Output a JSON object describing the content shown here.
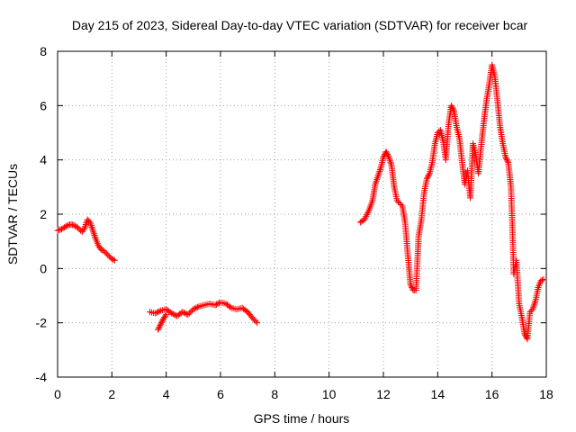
{
  "chart_data": {
    "type": "scatter",
    "title": "Day 215 of 2023, Sidereal Day-to-day VTEC variation (SDTVAR) for receiver bcar",
    "xlabel": "GPS time / hours",
    "ylabel": "SDTVAR / TECUs",
    "xlim": [
      0,
      18
    ],
    "ylim": [
      -4,
      8
    ],
    "xticks": [
      0,
      2,
      4,
      6,
      8,
      10,
      12,
      14,
      16,
      18
    ],
    "yticks": [
      -4,
      -2,
      0,
      2,
      4,
      6,
      8
    ],
    "xtick_labels": [
      "0",
      "2",
      "4",
      "6",
      "8",
      "10",
      "12",
      "14",
      "16",
      "18"
    ],
    "ytick_labels": [
      "-4",
      "-2",
      "0",
      "2",
      "4",
      "6",
      "8"
    ],
    "grid": true,
    "marker": "plus",
    "color": "#ff0000",
    "series": [
      {
        "name": "SDTVAR",
        "segments": [
          [
            [
              0.0,
              1.4
            ],
            [
              0.15,
              1.45
            ],
            [
              0.3,
              1.55
            ],
            [
              0.45,
              1.62
            ],
            [
              0.6,
              1.6
            ],
            [
              0.75,
              1.5
            ],
            [
              0.9,
              1.35
            ],
            [
              1.0,
              1.5
            ],
            [
              1.1,
              1.8
            ],
            [
              1.2,
              1.7
            ],
            [
              1.3,
              1.4
            ],
            [
              1.4,
              1.1
            ],
            [
              1.5,
              0.85
            ],
            [
              1.6,
              0.7
            ],
            [
              1.7,
              0.65
            ],
            [
              1.8,
              0.55
            ],
            [
              1.9,
              0.45
            ],
            [
              2.0,
              0.35
            ],
            [
              2.1,
              0.3
            ]
          ],
          [
            [
              3.4,
              -1.6
            ],
            [
              3.6,
              -1.65
            ],
            [
              3.8,
              -1.55
            ],
            [
              4.0,
              -1.5
            ],
            [
              4.2,
              -1.65
            ],
            [
              4.4,
              -1.75
            ],
            [
              4.6,
              -1.6
            ],
            [
              4.8,
              -1.7
            ],
            [
              5.0,
              -1.5
            ],
            [
              5.2,
              -1.4
            ],
            [
              5.4,
              -1.35
            ],
            [
              5.6,
              -1.3
            ],
            [
              5.8,
              -1.35
            ],
            [
              6.0,
              -1.25
            ],
            [
              6.2,
              -1.3
            ],
            [
              6.4,
              -1.45
            ],
            [
              6.6,
              -1.5
            ],
            [
              6.8,
              -1.45
            ],
            [
              7.0,
              -1.6
            ],
            [
              7.2,
              -1.85
            ],
            [
              7.35,
              -2.0
            ]
          ],
          [
            [
              3.7,
              -2.25
            ],
            [
              3.8,
              -2.05
            ],
            [
              3.9,
              -1.85
            ],
            [
              4.0,
              -1.7
            ]
          ],
          [
            [
              11.15,
              1.7
            ],
            [
              11.3,
              1.8
            ],
            [
              11.45,
              2.1
            ],
            [
              11.6,
              2.5
            ],
            [
              11.7,
              3.1
            ],
            [
              11.8,
              3.4
            ],
            [
              11.9,
              3.7
            ],
            [
              12.0,
              4.1
            ],
            [
              12.1,
              4.3
            ],
            [
              12.2,
              4.1
            ],
            [
              12.3,
              3.8
            ],
            [
              12.4,
              3.0
            ],
            [
              12.5,
              2.5
            ],
            [
              12.6,
              2.4
            ],
            [
              12.7,
              2.3
            ],
            [
              12.8,
              1.7
            ],
            [
              12.9,
              0.5
            ],
            [
              13.0,
              -0.6
            ],
            [
              13.1,
              -0.8
            ],
            [
              13.2,
              -0.8
            ],
            [
              13.3,
              1.2
            ],
            [
              13.4,
              1.8
            ],
            [
              13.5,
              2.8
            ],
            [
              13.6,
              3.3
            ],
            [
              13.7,
              3.5
            ],
            [
              13.8,
              3.9
            ],
            [
              13.9,
              4.6
            ],
            [
              14.0,
              5.0
            ],
            [
              14.1,
              5.1
            ],
            [
              14.2,
              4.7
            ],
            [
              14.3,
              4.0
            ],
            [
              14.4,
              5.3
            ],
            [
              14.5,
              6.0
            ],
            [
              14.6,
              5.8
            ],
            [
              14.7,
              5.2
            ],
            [
              14.8,
              4.8
            ],
            [
              14.9,
              3.9
            ],
            [
              15.0,
              3.1
            ],
            [
              15.1,
              3.6
            ],
            [
              15.2,
              2.6
            ],
            [
              15.3,
              4.6
            ],
            [
              15.4,
              4.2
            ],
            [
              15.5,
              3.5
            ],
            [
              15.6,
              4.5
            ],
            [
              15.7,
              5.4
            ],
            [
              15.8,
              6.2
            ],
            [
              15.9,
              6.8
            ],
            [
              16.0,
              7.5
            ],
            [
              16.1,
              7.1
            ],
            [
              16.2,
              6.2
            ],
            [
              16.3,
              5.2
            ],
            [
              16.4,
              4.6
            ],
            [
              16.5,
              4.1
            ],
            [
              16.6,
              3.9
            ],
            [
              16.7,
              3.0
            ],
            [
              16.75,
              1.6
            ],
            [
              16.8,
              -0.2
            ],
            [
              16.9,
              0.3
            ],
            [
              17.0,
              -1.3
            ],
            [
              17.1,
              -1.8
            ],
            [
              17.2,
              -2.4
            ],
            [
              17.3,
              -2.6
            ],
            [
              17.4,
              -1.6
            ],
            [
              17.5,
              -1.5
            ],
            [
              17.6,
              -1.2
            ],
            [
              17.7,
              -0.7
            ],
            [
              17.8,
              -0.45
            ],
            [
              17.9,
              -0.4
            ]
          ]
        ]
      }
    ]
  }
}
